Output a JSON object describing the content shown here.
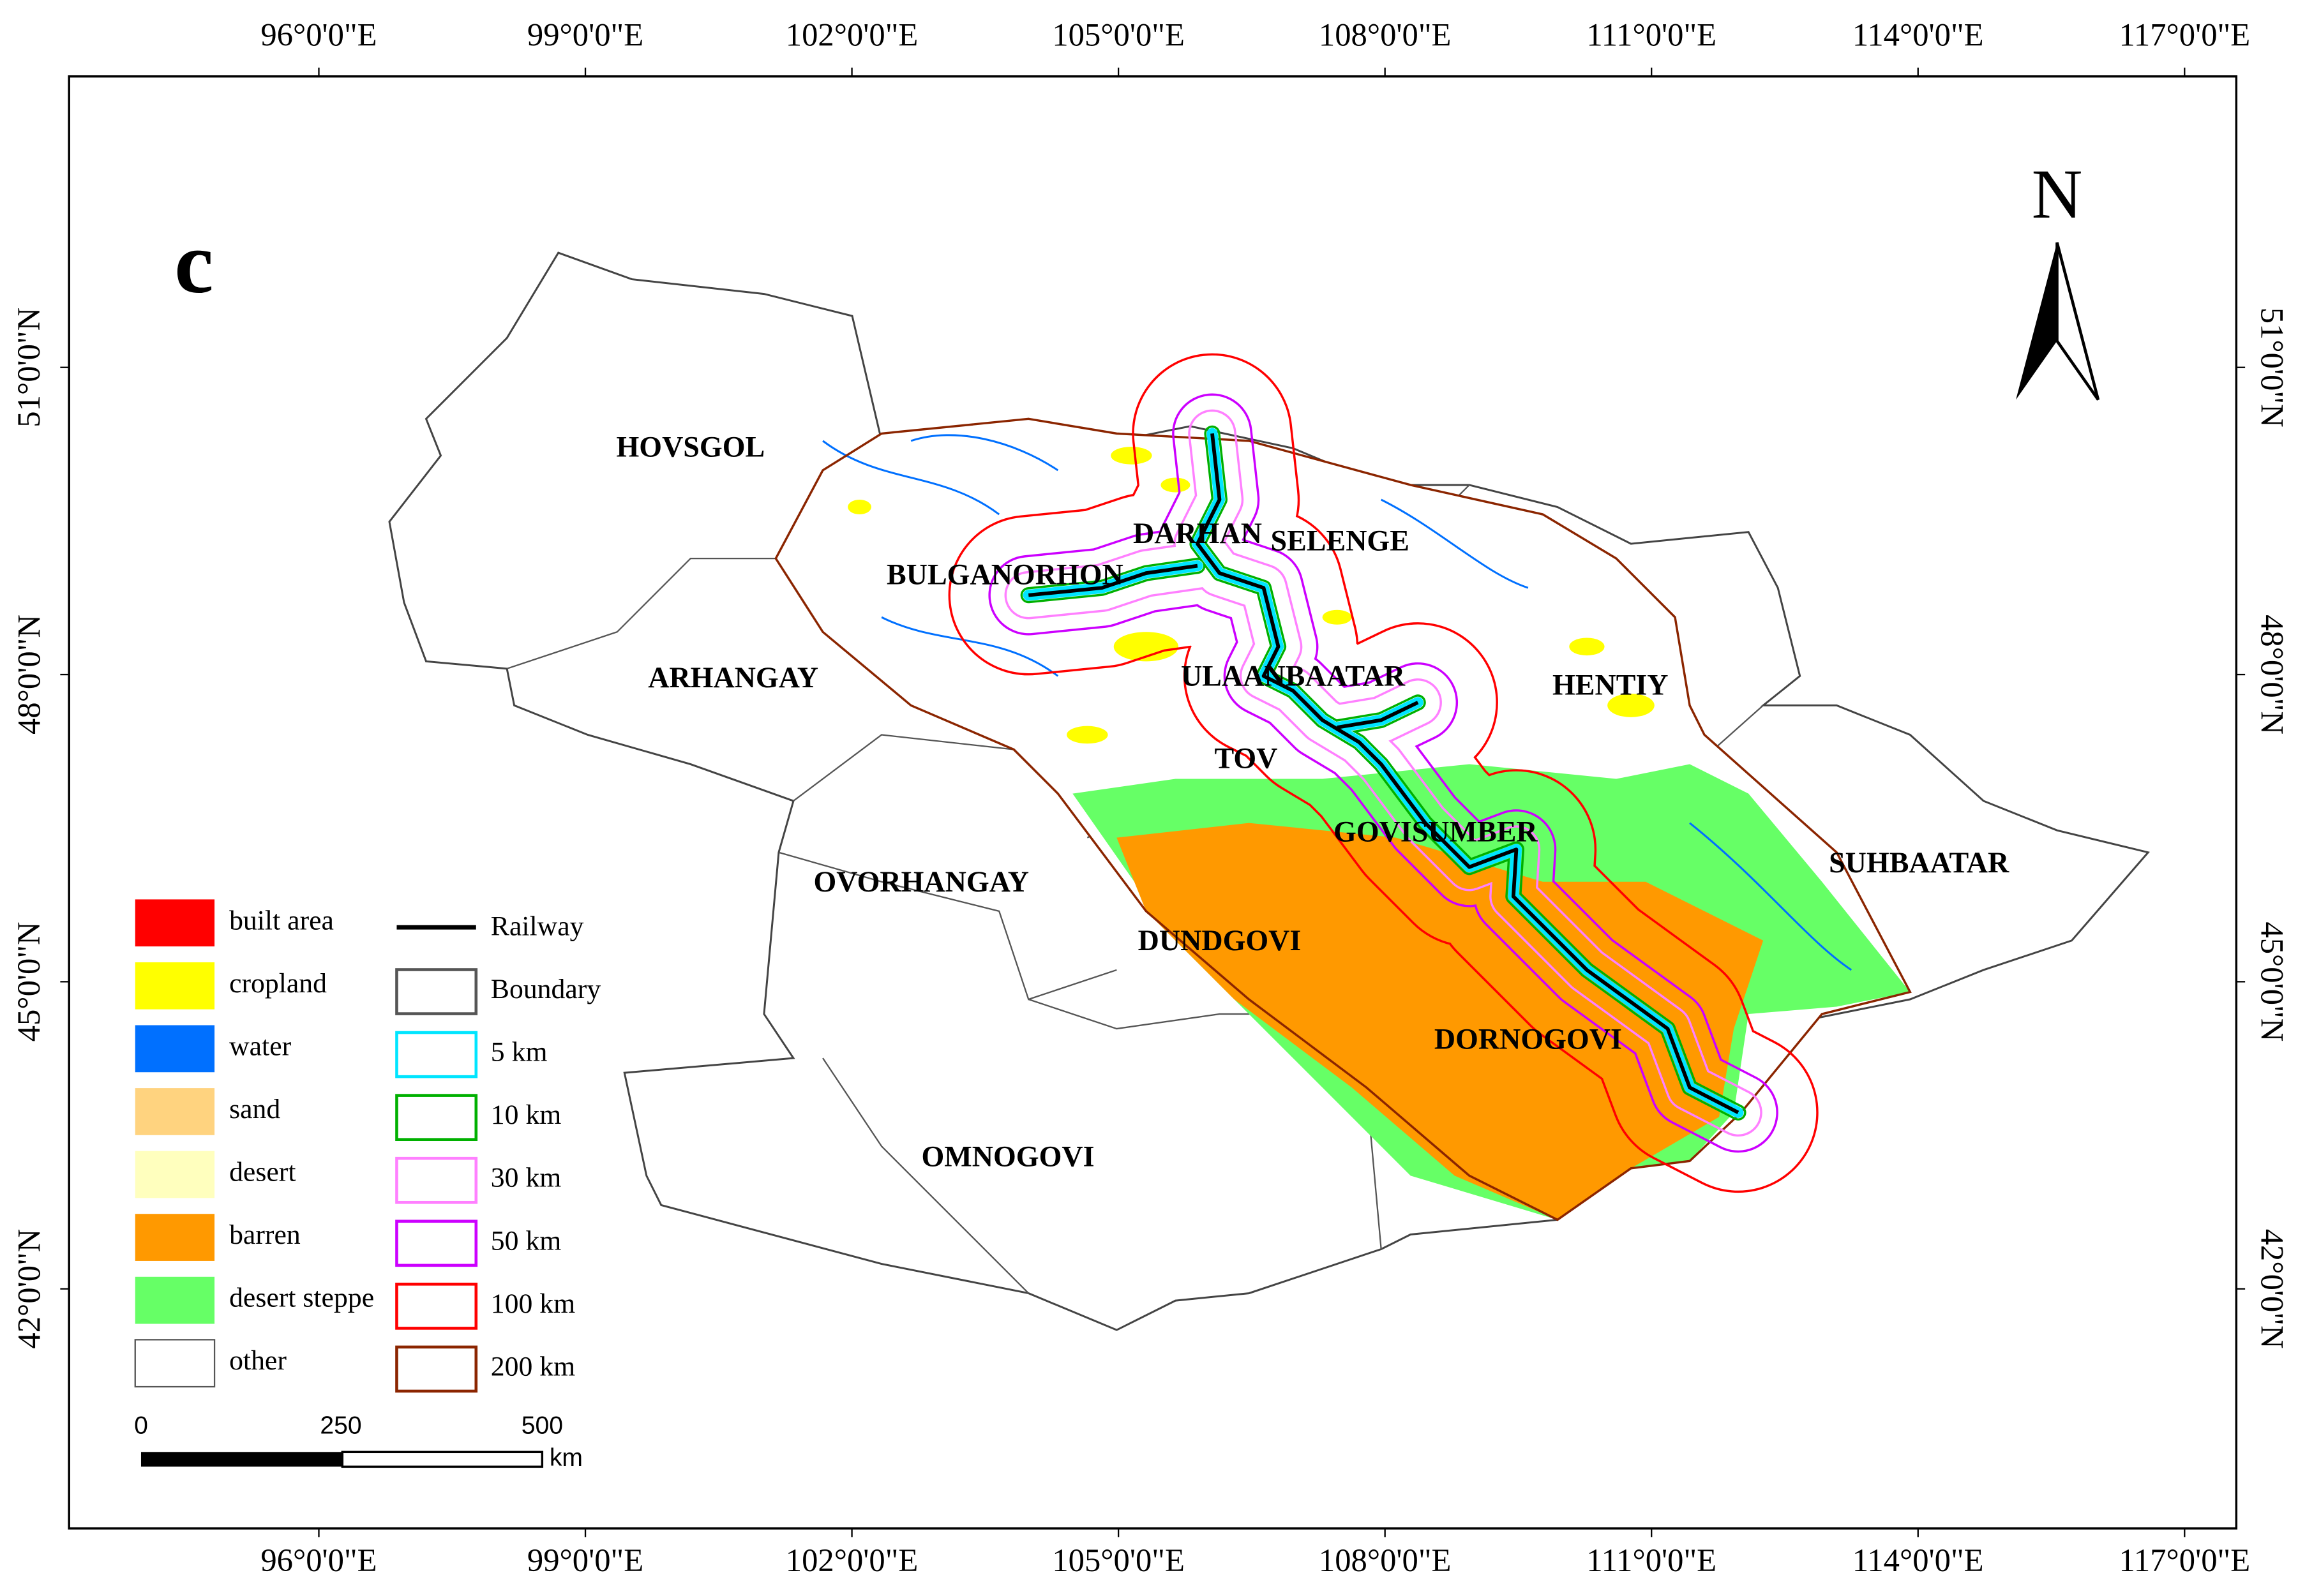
{
  "panel_label": "c",
  "north_label": "N",
  "longitude_labels": [
    "96°0'0\"E",
    "99°0'0\"E",
    "102°0'0\"E",
    "105°0'0\"E",
    "108°0'0\"E",
    "111°0'0\"E",
    "114°0'0\"E",
    "117°0'0\"E"
  ],
  "latitude_labels": [
    "51°0'0\"N",
    "48°0'0\"N",
    "45°0'0\"N",
    "42°0'0\"N"
  ],
  "regions": [
    "HOVSGOL",
    "BULGANORHON",
    "DARHAN",
    "SELENGE",
    "ARHANGAY",
    "ULAANBAATAR",
    "HENTIY",
    "TOV",
    "GOVISUMBER",
    "OVORHANGAY",
    "SUHBAATAR",
    "DUNDGOVI",
    "DORNOGOVI",
    "OMNOGOVI"
  ],
  "legend": {
    "land_cover": [
      {
        "label": "built area",
        "color": "#ff0000"
      },
      {
        "label": "cropland",
        "color": "#ffff00"
      },
      {
        "label": "water",
        "color": "#0070ff"
      },
      {
        "label": "sand",
        "color": "#ffd37f"
      },
      {
        "label": "desert",
        "color": "#ffffbe"
      },
      {
        "label": "barren",
        "color": "#ff9900"
      },
      {
        "label": "desert steppe",
        "color": "#66ff66"
      },
      {
        "label": "other",
        "color": "#ffffff"
      }
    ],
    "lines": [
      {
        "label": "Railway",
        "color": "#000000"
      },
      {
        "label": "Boundary",
        "color": "#555555"
      },
      {
        "label": "5 km",
        "color": "#00e5ff"
      },
      {
        "label": "10 km",
        "color": "#00b000"
      },
      {
        "label": "30 km",
        "color": "#ff80ff"
      },
      {
        "label": "50 km",
        "color": "#cc00ff"
      },
      {
        "label": "100 km",
        "color": "#ff0000"
      },
      {
        "label": "200 km",
        "color": "#8b2500"
      }
    ]
  },
  "scale_bar": {
    "labels": [
      "0",
      "250",
      "500"
    ],
    "unit": "km"
  }
}
